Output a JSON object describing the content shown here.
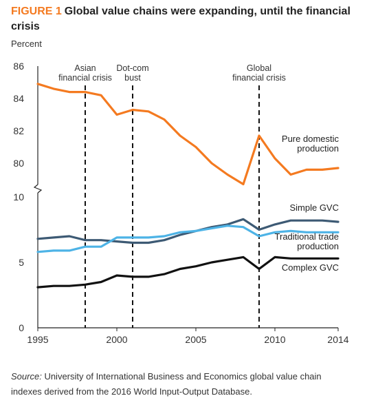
{
  "figure": {
    "label": "FIGURE 1",
    "title": "Global value chains were expanding, until the financial crisis",
    "unit_label": "Percent"
  },
  "source": {
    "label": "Source:",
    "text": "University of International Business and Economics global value chain indexes derived from the 2016 World Input-Output Database."
  },
  "colors": {
    "pure_domestic": "#f47a20",
    "simple_gvc": "#3d5a74",
    "traditional_trade": "#4db3e6",
    "complex_gvc": "#111111",
    "axis": "#222222"
  },
  "chart_data": {
    "type": "line",
    "title": "Global value chains were expanding, until the financial crisis",
    "ylabel": "Percent",
    "xlabel": "",
    "broken_axis": true,
    "ylim_lower": [
      0,
      10
    ],
    "ylim_upper": [
      78,
      86
    ],
    "lower_ticks": [
      0,
      5,
      10
    ],
    "upper_ticks": [
      80,
      82,
      84,
      86
    ],
    "x_ticks": [
      1995,
      2000,
      2005,
      2010,
      2014
    ],
    "xlim": [
      1995,
      2014
    ],
    "grid": false,
    "annotations": [
      {
        "x": 1998,
        "lines": [
          "Asian",
          "financial crisis"
        ]
      },
      {
        "x": 2001,
        "lines": [
          "Dot-com",
          "bust"
        ]
      },
      {
        "x": 2009,
        "lines": [
          "Global",
          "financial crisis"
        ]
      }
    ],
    "x": [
      1995,
      1996,
      1997,
      1998,
      1999,
      2000,
      2001,
      2002,
      2003,
      2004,
      2005,
      2006,
      2007,
      2008,
      2009,
      2010,
      2011,
      2012,
      2013,
      2014
    ],
    "series": [
      {
        "name": "Pure domestic production",
        "label_lines": [
          "Pure domestic",
          "production"
        ],
        "axis": "upper",
        "color_key": "pure_domestic",
        "values": [
          84.9,
          84.6,
          84.4,
          84.4,
          84.2,
          83.0,
          83.3,
          83.2,
          82.7,
          81.7,
          81.0,
          80.0,
          79.3,
          78.7,
          81.7,
          80.3,
          79.3,
          79.6,
          79.6,
          79.7
        ]
      },
      {
        "name": "Simple GVC",
        "label_lines": [
          "Simple GVC"
        ],
        "axis": "lower",
        "color_key": "simple_gvc",
        "values": [
          6.8,
          6.9,
          7.0,
          6.7,
          6.7,
          6.6,
          6.5,
          6.5,
          6.7,
          7.1,
          7.4,
          7.7,
          7.9,
          8.3,
          7.5,
          7.9,
          8.2,
          8.2,
          8.2,
          8.1
        ]
      },
      {
        "name": "Traditional trade production",
        "label_lines": [
          "Traditional trade",
          "production"
        ],
        "axis": "lower",
        "color_key": "traditional_trade",
        "values": [
          5.8,
          5.9,
          5.9,
          6.2,
          6.2,
          6.9,
          6.9,
          6.9,
          7.0,
          7.3,
          7.4,
          7.6,
          7.8,
          7.7,
          7.0,
          7.3,
          7.4,
          7.3,
          7.3,
          7.3
        ]
      },
      {
        "name": "Complex GVC",
        "label_lines": [
          "Complex GVC"
        ],
        "axis": "lower",
        "color_key": "complex_gvc",
        "values": [
          3.1,
          3.2,
          3.2,
          3.3,
          3.5,
          4.0,
          3.9,
          3.9,
          4.1,
          4.5,
          4.7,
          5.0,
          5.2,
          5.4,
          4.5,
          5.4,
          5.3,
          5.3,
          5.3,
          5.3
        ]
      }
    ]
  }
}
